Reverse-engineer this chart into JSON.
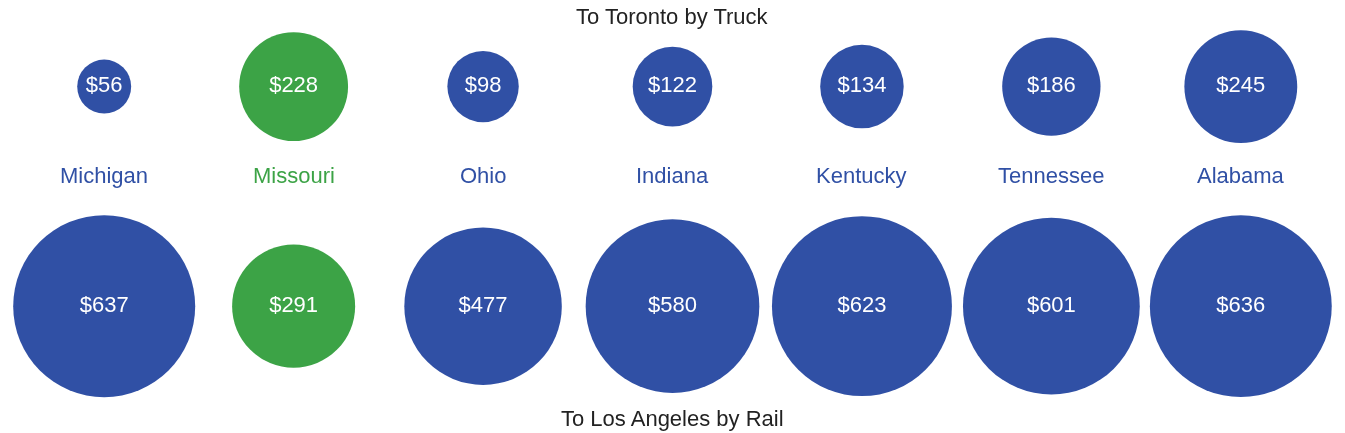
{
  "chart_data": {
    "type": "other",
    "categories": [
      "Michigan",
      "Missouri",
      "Ohio",
      "Indiana",
      "Kentucky",
      "Tennessee",
      "Alabama"
    ],
    "series": [
      {
        "name": "To Toronto by Truck",
        "values": [
          56,
          228,
          98,
          122,
          134,
          186,
          245
        ],
        "value_labels": [
          "$56",
          "$228",
          "$98",
          "$122",
          "$134",
          "$186",
          "$245"
        ],
        "colors": [
          "#3050a5",
          "#3ca346",
          "#3050a5",
          "#3050a5",
          "#3050a5",
          "#3050a5",
          "#3050a5"
        ]
      },
      {
        "name": "To Los Angeles by Rail",
        "values": [
          637,
          291,
          477,
          580,
          623,
          601,
          636
        ],
        "value_labels": [
          "$637",
          "$291",
          "$477",
          "$580",
          "$623",
          "$601",
          "$636"
        ],
        "colors": [
          "#3050a5",
          "#3ca346",
          "#3050a5",
          "#3050a5",
          "#3050a5",
          "#3050a5",
          "#3050a5"
        ]
      }
    ]
  }
}
